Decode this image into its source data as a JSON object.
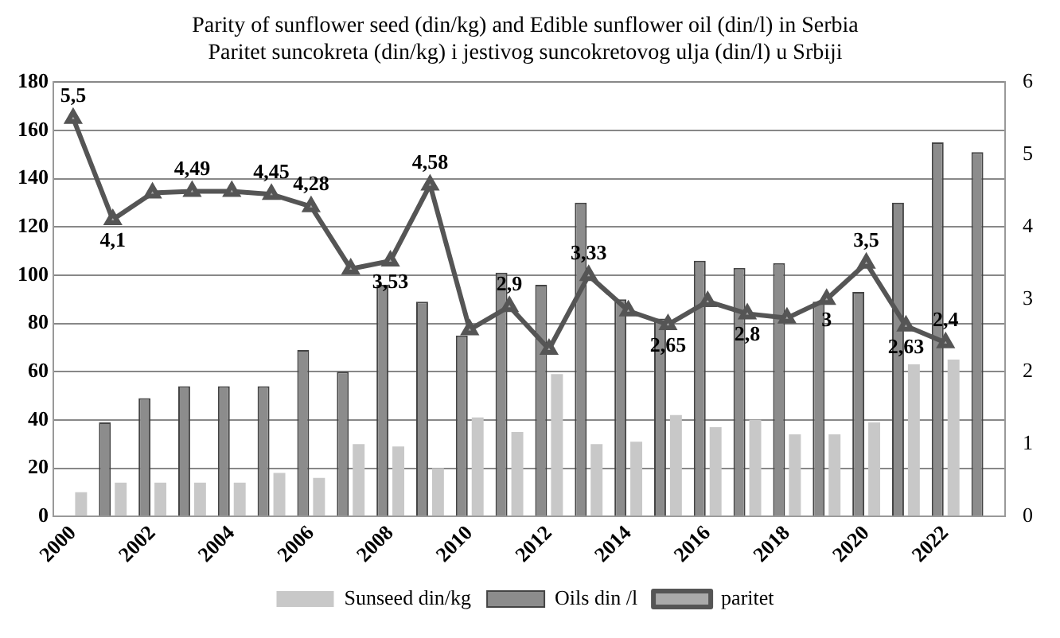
{
  "chart_data": {
    "type": "bar",
    "title": "Parity of sunflower seed (din/kg) and Edible sunflower oil (din/l) in Serbia",
    "subtitle": "Paritet suncokreta (din/kg) i jestivog suncokretovog ulja (din/l) u Srbiji",
    "categories": [
      "2000",
      null,
      "2002",
      null,
      "2004",
      null,
      "2006",
      null,
      "2008",
      null,
      "2010",
      null,
      "2012",
      null,
      "2014",
      null,
      "2016",
      null,
      "2018",
      null,
      "2020",
      null,
      "2022",
      null
    ],
    "series": [
      {
        "name": "Oils din /l",
        "type": "bar",
        "color": "#8c8c8c",
        "values": [
          null,
          39,
          49,
          54,
          54,
          54,
          69,
          60,
          96,
          89,
          75,
          101,
          96,
          130,
          90,
          82,
          106,
          103,
          105,
          89,
          93,
          130,
          155,
          151
        ]
      },
      {
        "name": "Sunseed din/kg",
        "type": "bar",
        "color": "#c8c8c8",
        "values": [
          10,
          14,
          14,
          14,
          14,
          18,
          16,
          30,
          29,
          20,
          41,
          35,
          59,
          30,
          31,
          42,
          37,
          40,
          34,
          34,
          39,
          63,
          65,
          null
        ]
      },
      {
        "name": "paritet",
        "type": "line",
        "axis": "y2",
        "color": "#555555",
        "marker": "triangle",
        "values": [
          5.5,
          4.1,
          4.47,
          4.49,
          4.49,
          4.45,
          4.28,
          3.42,
          3.53,
          4.58,
          2.58,
          2.9,
          2.31,
          3.33,
          2.84,
          2.65,
          2.97,
          2.8,
          2.74,
          3,
          3.5,
          2.63,
          2.4,
          null
        ],
        "value_labels": [
          "5,5",
          "4,1",
          null,
          "4,49",
          null,
          "4,45",
          "4,28",
          null,
          "3,53",
          "4,58",
          null,
          "2,9",
          null,
          "3,33",
          null,
          "2,65",
          null,
          "2,8",
          null,
          "3",
          "3,5",
          "2,63",
          "2,4",
          null
        ]
      }
    ],
    "ylim": [
      0,
      180
    ],
    "yticks": [
      0,
      20,
      40,
      60,
      80,
      100,
      120,
      140,
      160,
      180
    ],
    "y2lim": [
      0,
      6
    ],
    "y2ticks": [
      0,
      1,
      2,
      3,
      4,
      5,
      6
    ],
    "grid": "y",
    "legend": "bottom"
  }
}
